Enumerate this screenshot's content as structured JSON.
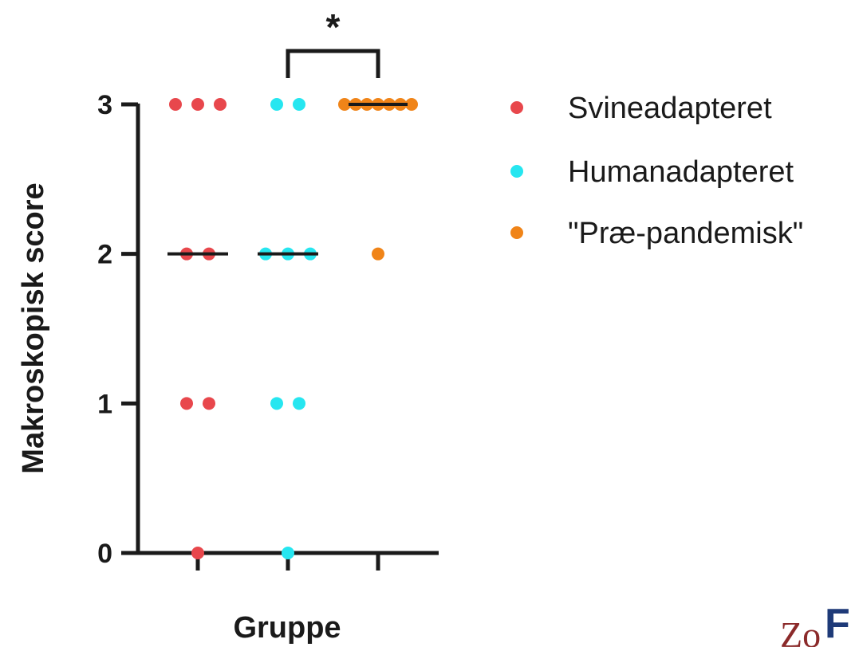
{
  "chart_data": {
    "type": "scatter",
    "title": "",
    "xlabel": "Gruppe",
    "ylabel": "Makroskopisk score",
    "ylim": [
      0,
      3
    ],
    "yticks": [
      "0",
      "1",
      "2",
      "3"
    ],
    "grid": false,
    "legend_position": "right",
    "series": [
      {
        "name": "Svineadapteret",
        "color": "#e8474c",
        "median": 2,
        "values": [
          3,
          3,
          3,
          2,
          2,
          1,
          1,
          0
        ]
      },
      {
        "name": "Humanadapteret",
        "color": "#26e6f0",
        "median": 2,
        "values": [
          3,
          3,
          2,
          2,
          2,
          1,
          1,
          0
        ]
      },
      {
        "name": "\"Præ-pandemisk\"",
        "color": "#f08418",
        "median": 3,
        "values": [
          3,
          3,
          3,
          3,
          3,
          3,
          3,
          2
        ]
      }
    ],
    "significance": {
      "label": "*",
      "between": [
        1,
        2
      ]
    }
  },
  "corner_mark": {
    "left_text": "Zo",
    "right_text": "F"
  }
}
